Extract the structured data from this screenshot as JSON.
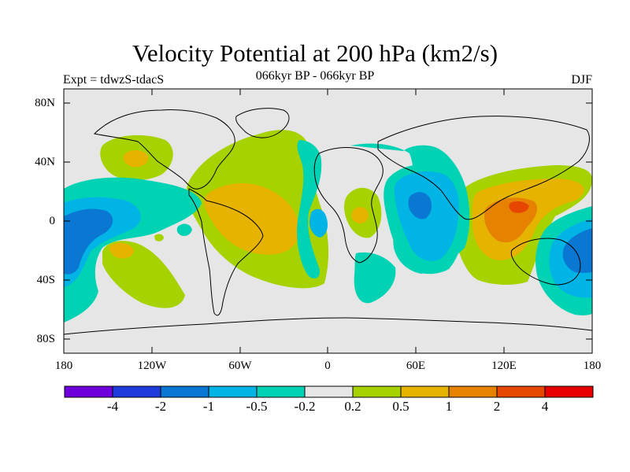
{
  "title": "Velocity Potential at 200 hPa (km2/s)",
  "subtitle": "066kyr BP - 066kyr BP",
  "left_label": "Expt = tdwzS-tdacS",
  "right_label": "DJF",
  "lat_labels": [
    "80N",
    "40N",
    "0",
    "40S",
    "80S"
  ],
  "lon_labels": [
    "180",
    "120W",
    "60W",
    "0",
    "60E",
    "120E",
    "180"
  ],
  "colorbar": {
    "colors": [
      "#6e00dc",
      "#1e3cdc",
      "#0a78d2",
      "#00b4e6",
      "#00d2b4",
      "#e6e6e6",
      "#a6d200",
      "#e6b400",
      "#e68200",
      "#e64600",
      "#e60000"
    ],
    "labels": [
      "-4",
      "-2",
      "-1",
      "-0.5",
      "-0.2",
      "0.2",
      "0.5",
      "1",
      "2",
      "4"
    ]
  }
}
